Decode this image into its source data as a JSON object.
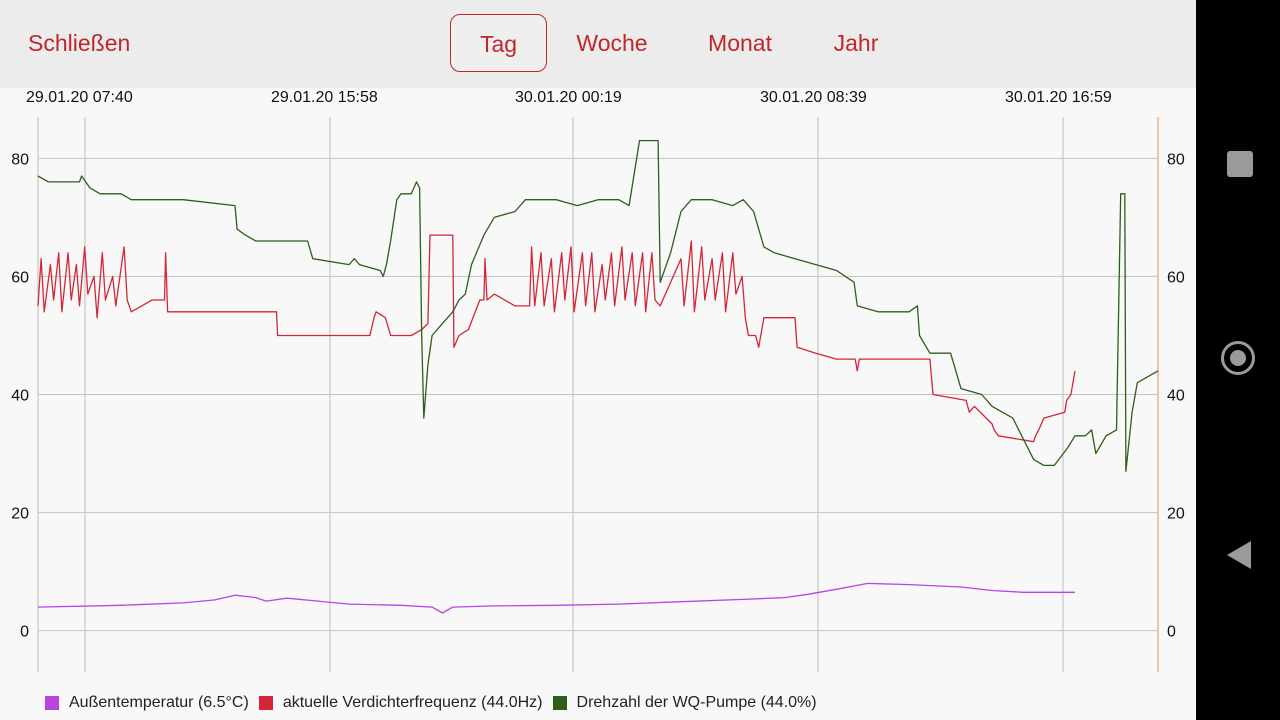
{
  "header": {
    "close_label": "Schließen",
    "tabs": [
      {
        "label": "Tag",
        "active": true
      },
      {
        "label": "Woche",
        "active": false
      },
      {
        "label": "Monat",
        "active": false
      },
      {
        "label": "Jahr",
        "active": false
      }
    ]
  },
  "chart_data": {
    "type": "line",
    "x_labels": [
      "29.01.20 07:40",
      "29.01.20 15:58",
      "30.01.20 00:19",
      "30.01.20 08:39",
      "30.01.20 16:59"
    ],
    "ylim": [
      -7,
      87
    ],
    "y_ticks": [
      "0",
      "20",
      "40",
      "60",
      "80"
    ],
    "grid": true,
    "legend_position": "bottom",
    "series": [
      {
        "name": "Außentemperatur (6.5°C)",
        "color": "#b845e0",
        "points": [
          [
            0,
            4
          ],
          [
            8,
            4.3
          ],
          [
            14,
            4.7
          ],
          [
            17,
            5.2
          ],
          [
            19,
            6
          ],
          [
            21,
            5.6
          ],
          [
            22,
            5
          ],
          [
            24,
            5.5
          ],
          [
            27,
            5
          ],
          [
            30,
            4.5
          ],
          [
            35,
            4.3
          ],
          [
            38,
            4
          ],
          [
            39,
            3
          ],
          [
            40,
            4
          ],
          [
            44,
            4.2
          ],
          [
            50,
            4.3
          ],
          [
            56,
            4.5
          ],
          [
            62,
            4.9
          ],
          [
            68,
            5.3
          ],
          [
            72,
            5.6
          ],
          [
            74,
            6.1
          ],
          [
            77,
            7
          ],
          [
            80,
            8
          ],
          [
            84,
            7.8
          ],
          [
            89,
            7.4
          ],
          [
            92,
            6.8
          ],
          [
            95,
            6.5
          ],
          [
            100,
            6.5
          ]
        ]
      },
      {
        "name": "aktuelle Verdichterfrequenz (44.0Hz)",
        "color": "#d32638",
        "points": [
          [
            0,
            55
          ],
          [
            0.3,
            63
          ],
          [
            0.6,
            54
          ],
          [
            1.2,
            62
          ],
          [
            1.5,
            56
          ],
          [
            2,
            64
          ],
          [
            2.3,
            54
          ],
          [
            2.9,
            64
          ],
          [
            3.2,
            56
          ],
          [
            3.7,
            62
          ],
          [
            4,
            55
          ],
          [
            4.5,
            65
          ],
          [
            4.8,
            57
          ],
          [
            5.4,
            60
          ],
          [
            5.7,
            53
          ],
          [
            6.2,
            64
          ],
          [
            6.5,
            56
          ],
          [
            7.2,
            60
          ],
          [
            7.5,
            55
          ],
          [
            8.3,
            65
          ],
          [
            8.6,
            56
          ],
          [
            9,
            54
          ],
          [
            10,
            55
          ],
          [
            11,
            56
          ],
          [
            12.2,
            56
          ],
          [
            12.3,
            64
          ],
          [
            12.5,
            54
          ],
          [
            16,
            54
          ],
          [
            19,
            54
          ],
          [
            22,
            54
          ],
          [
            23,
            54
          ],
          [
            23.1,
            50
          ],
          [
            28,
            50
          ],
          [
            31,
            50
          ],
          [
            32,
            50
          ],
          [
            32.4,
            53
          ],
          [
            32.6,
            54
          ],
          [
            33.5,
            53
          ],
          [
            34,
            50
          ],
          [
            36,
            50
          ],
          [
            37,
            51
          ],
          [
            37.6,
            52
          ],
          [
            37.8,
            67
          ],
          [
            40,
            67
          ],
          [
            40.1,
            48
          ],
          [
            40.6,
            50
          ],
          [
            41.5,
            51
          ],
          [
            42.6,
            56
          ],
          [
            43,
            56
          ],
          [
            43.1,
            63
          ],
          [
            43.3,
            56
          ],
          [
            44,
            57
          ],
          [
            46,
            55
          ],
          [
            47.4,
            55
          ],
          [
            47.6,
            65
          ],
          [
            47.9,
            55
          ],
          [
            48.5,
            64
          ],
          [
            48.8,
            55
          ],
          [
            49.5,
            63
          ],
          [
            49.8,
            54
          ],
          [
            50.5,
            64
          ],
          [
            50.8,
            56
          ],
          [
            51.4,
            65
          ],
          [
            51.7,
            54
          ],
          [
            52.5,
            64
          ],
          [
            52.8,
            55
          ],
          [
            53.4,
            64
          ],
          [
            53.7,
            54
          ],
          [
            54.4,
            62
          ],
          [
            54.7,
            56
          ],
          [
            55.3,
            64
          ],
          [
            55.6,
            55
          ],
          [
            56.3,
            65
          ],
          [
            56.6,
            56
          ],
          [
            57.3,
            64
          ],
          [
            57.6,
            55
          ],
          [
            58.3,
            64
          ],
          [
            58.6,
            54
          ],
          [
            59.2,
            64
          ],
          [
            59.5,
            56
          ],
          [
            60,
            55
          ],
          [
            62,
            63
          ],
          [
            62.3,
            55
          ],
          [
            63,
            66
          ],
          [
            63.3,
            54
          ],
          [
            64,
            65
          ],
          [
            64.3,
            56
          ],
          [
            65,
            63
          ],
          [
            65.3,
            56
          ],
          [
            66,
            64
          ],
          [
            66.3,
            54
          ],
          [
            67,
            64
          ],
          [
            67.3,
            57
          ],
          [
            67.9,
            60
          ],
          [
            68.2,
            53
          ],
          [
            68.5,
            50
          ],
          [
            69.2,
            50
          ],
          [
            69.5,
            48
          ],
          [
            70,
            53
          ],
          [
            73,
            53
          ],
          [
            73.2,
            48
          ],
          [
            75,
            47
          ],
          [
            77,
            46
          ],
          [
            78.8,
            46
          ],
          [
            79,
            44
          ],
          [
            79.2,
            46
          ],
          [
            86,
            46
          ],
          [
            86.3,
            40
          ],
          [
            89.5,
            39
          ],
          [
            89.8,
            37
          ],
          [
            90.3,
            38
          ],
          [
            92,
            35
          ],
          [
            92.2,
            34
          ],
          [
            92.6,
            33
          ],
          [
            96,
            32
          ],
          [
            96.2,
            33
          ],
          [
            96.5,
            34
          ],
          [
            97,
            36
          ],
          [
            99,
            37
          ],
          [
            99.2,
            39
          ],
          [
            99.6,
            40
          ],
          [
            100,
            44
          ]
        ]
      },
      {
        "name": "Drehzahl der WQ-Pumpe (44.0%)",
        "color": "#2e5e1c",
        "points": [
          [
            0,
            77
          ],
          [
            1,
            76
          ],
          [
            4,
            76
          ],
          [
            4.2,
            77
          ],
          [
            5,
            75
          ],
          [
            6,
            74
          ],
          [
            8,
            74
          ],
          [
            9,
            73
          ],
          [
            12,
            73
          ],
          [
            14,
            73
          ],
          [
            19,
            72
          ],
          [
            19.2,
            68
          ],
          [
            20,
            67
          ],
          [
            21,
            66
          ],
          [
            22,
            66
          ],
          [
            26,
            66
          ],
          [
            26.5,
            63
          ],
          [
            30,
            62
          ],
          [
            30.5,
            63
          ],
          [
            31,
            62
          ],
          [
            33,
            61
          ],
          [
            33.3,
            60
          ],
          [
            33.6,
            62
          ],
          [
            34,
            66
          ],
          [
            34.6,
            73
          ],
          [
            35,
            74
          ],
          [
            36,
            74
          ],
          [
            36.5,
            76
          ],
          [
            36.8,
            75
          ],
          [
            37,
            50
          ],
          [
            37.2,
            36
          ],
          [
            37.6,
            45
          ],
          [
            38,
            50
          ],
          [
            39,
            52
          ],
          [
            40,
            54
          ],
          [
            40.6,
            56
          ],
          [
            41.2,
            57
          ],
          [
            41.8,
            62
          ],
          [
            43,
            67
          ],
          [
            44,
            70
          ],
          [
            46,
            71
          ],
          [
            47,
            73
          ],
          [
            48,
            73
          ],
          [
            50,
            73
          ],
          [
            52,
            72
          ],
          [
            54,
            73
          ],
          [
            56,
            73
          ],
          [
            57,
            72
          ],
          [
            58,
            83
          ],
          [
            59.8,
            83
          ],
          [
            60,
            59
          ],
          [
            61,
            64
          ],
          [
            62,
            71
          ],
          [
            63,
            73
          ],
          [
            65,
            73
          ],
          [
            67,
            72
          ],
          [
            68,
            73
          ],
          [
            69,
            71
          ],
          [
            70,
            65
          ],
          [
            71,
            64
          ],
          [
            73,
            63
          ],
          [
            75,
            62
          ],
          [
            77,
            61
          ],
          [
            78.7,
            59
          ],
          [
            79,
            55
          ],
          [
            81,
            54
          ],
          [
            84,
            54
          ],
          [
            84.8,
            55
          ],
          [
            85,
            50
          ],
          [
            86,
            47
          ],
          [
            88,
            47
          ],
          [
            89,
            41
          ],
          [
            91,
            40
          ],
          [
            92,
            38
          ],
          [
            93,
            37
          ],
          [
            94,
            36
          ],
          [
            96,
            29
          ],
          [
            97,
            28
          ],
          [
            98,
            28
          ],
          [
            99.3,
            31
          ],
          [
            100,
            33
          ],
          [
            101,
            33
          ],
          [
            101.6,
            34
          ],
          [
            102,
            30
          ],
          [
            103,
            33
          ],
          [
            104,
            34
          ],
          [
            104.4,
            74
          ],
          [
            104.8,
            74
          ],
          [
            104.9,
            27
          ],
          [
            105.5,
            37
          ],
          [
            106,
            42
          ],
          [
            107,
            43
          ],
          [
            108,
            44
          ]
        ]
      }
    ],
    "x_max": 108
  },
  "legend": [
    {
      "label": "Außentemperatur (6.5°C)",
      "color": "#b845e0"
    },
    {
      "label": "aktuelle Verdichterfrequenz (44.0Hz)",
      "color": "#d32638"
    },
    {
      "label": "Drehzahl der WQ-Pumpe (44.0%)",
      "color": "#2e5e1c"
    }
  ],
  "nav": {
    "icons": [
      "recents-icon",
      "home-icon",
      "back-icon"
    ]
  }
}
